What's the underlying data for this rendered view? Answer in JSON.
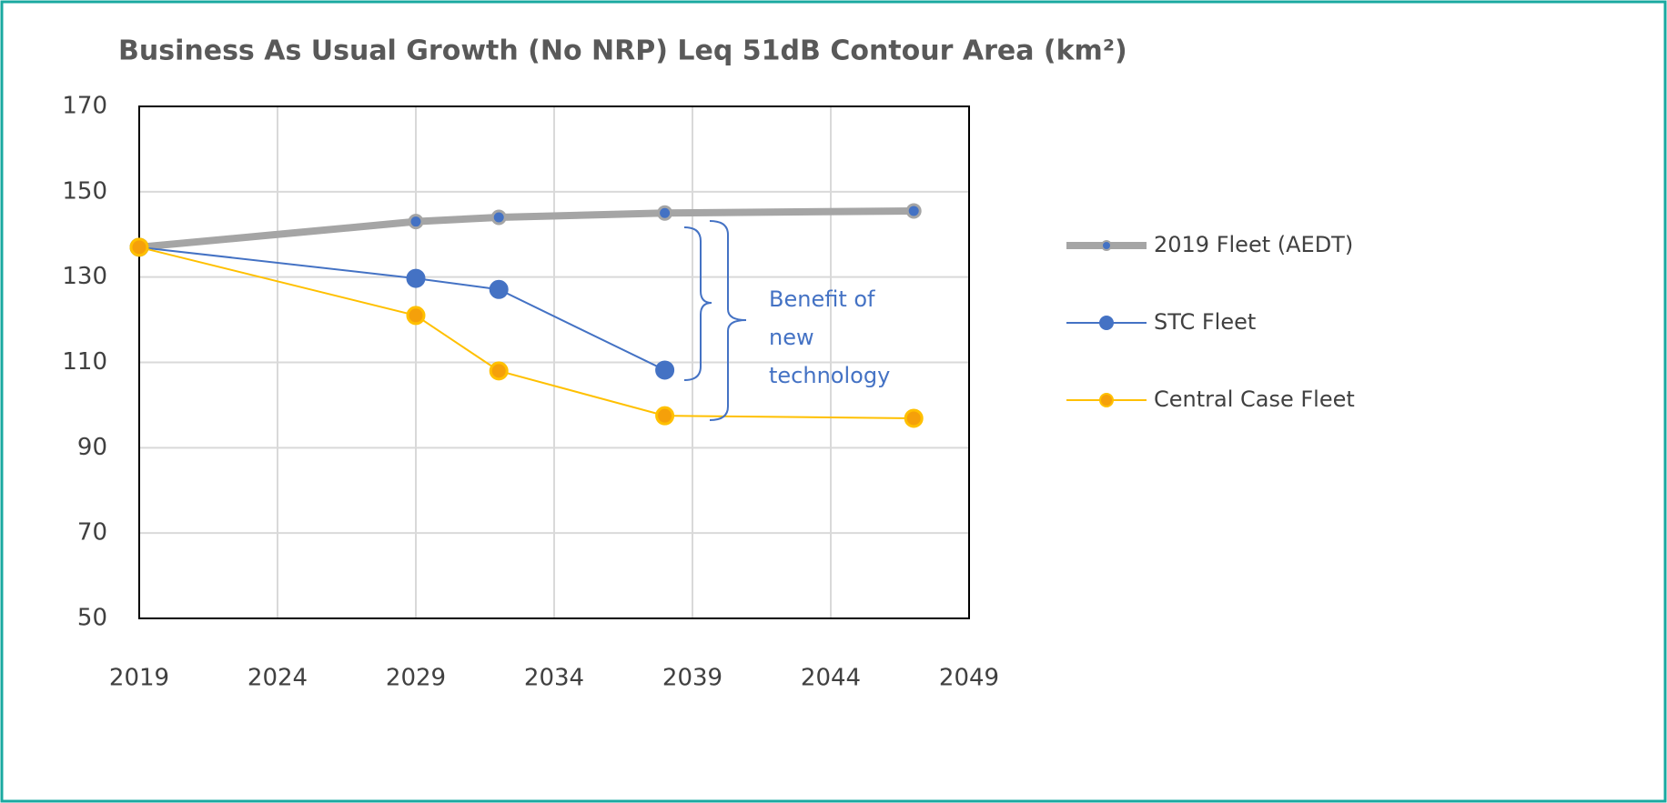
{
  "chart_data": {
    "type": "line",
    "title": "Business As Usual Growth (No NRP) Leq 51dB Contour Area (km²)",
    "series": [
      {
        "name": "2019 Fleet (AEDT)",
        "color": "#a5a5a5",
        "x": [
          2019,
          2029,
          2032,
          2038,
          2047
        ],
        "values": [
          137,
          143,
          144,
          145,
          145.5
        ]
      },
      {
        "name": "STC Fleet",
        "color": "#4472c4",
        "x": [
          2019,
          2029,
          2032,
          2038
        ],
        "values": [
          137,
          129.7,
          127.1,
          108.2
        ]
      },
      {
        "name": "Central Case Fleet",
        "color": "#ffc000",
        "x": [
          2019,
          2029,
          2032,
          2038,
          2047
        ],
        "values": [
          137,
          121,
          108,
          97.5,
          96.9
        ]
      }
    ],
    "annotation": [
      "Benefit of",
      "new",
      "technology"
    ],
    "xlim": [
      2019,
      2049
    ],
    "xticks": [
      2019,
      2024,
      2029,
      2034,
      2039,
      2044,
      2049
    ],
    "ylim": [
      50,
      170
    ],
    "yticks": [
      50,
      70,
      90,
      110,
      130,
      150,
      170
    ],
    "grid": true,
    "legend": "right"
  }
}
